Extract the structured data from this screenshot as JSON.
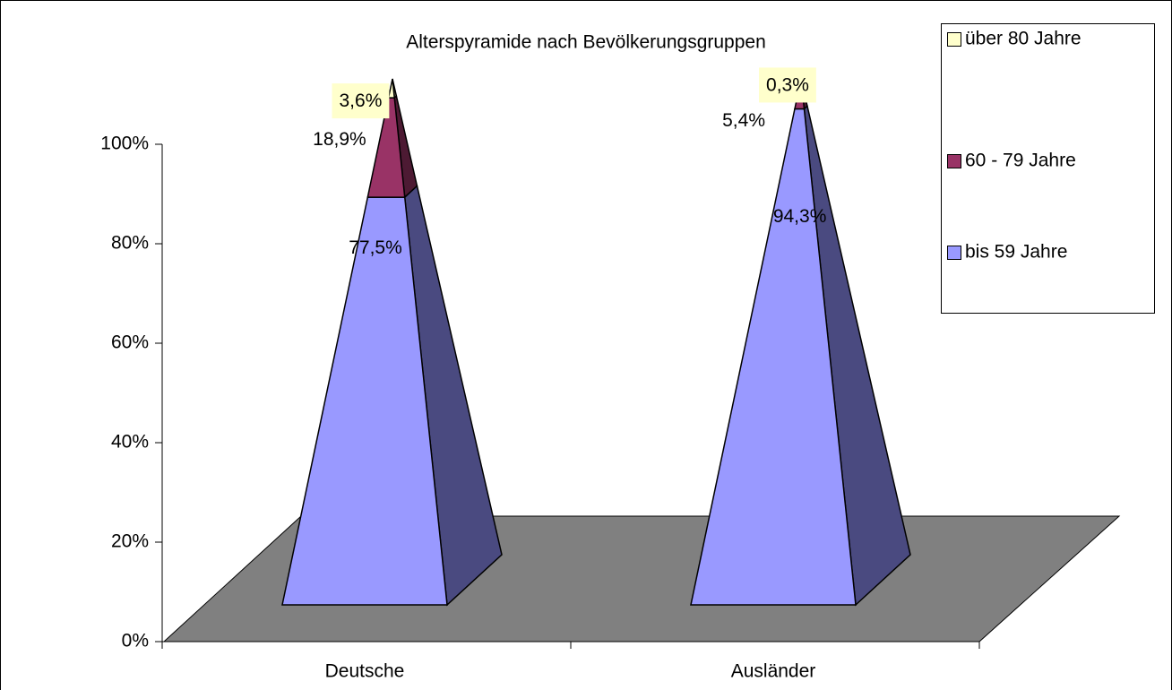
{
  "chart_data": {
    "type": "pyramid",
    "title": "Alterspyramide nach Bevölkerungsgruppen",
    "categories": [
      "Deutsche",
      "Ausländer"
    ],
    "series": [
      {
        "name": "bis 59 Jahre",
        "color": "#9999ff",
        "values": [
          77.5,
          94.3
        ],
        "value_labels": [
          "77,5%",
          "94,3%"
        ]
      },
      {
        "name": "60 - 79 Jahre",
        "color": "#993366",
        "values": [
          18.9,
          5.4
        ],
        "value_labels": [
          "18,9%",
          "5,4%"
        ]
      },
      {
        "name": "über 80 Jahre",
        "color": "#ffffcc",
        "values": [
          3.6,
          0.3
        ],
        "value_labels": [
          "3,6%",
          "0,3%"
        ]
      }
    ],
    "ylim": [
      0,
      100
    ],
    "yticks": [
      {
        "value": 0,
        "label": "0%"
      },
      {
        "value": 20,
        "label": "20%"
      },
      {
        "value": 40,
        "label": "40%"
      },
      {
        "value": 60,
        "label": "60%"
      },
      {
        "value": 80,
        "label": "80%"
      },
      {
        "value": 100,
        "label": "100%"
      }
    ],
    "legend": "right"
  }
}
